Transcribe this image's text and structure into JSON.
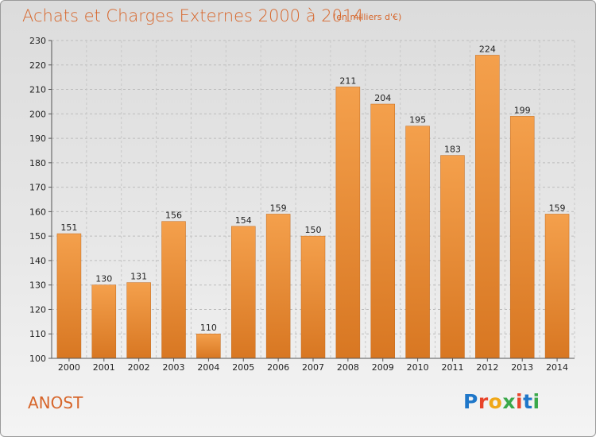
{
  "title": "Achats et Charges Externes 2000 à 2014",
  "subtitle": "(en milliers d'€)",
  "commune": "ANOST",
  "logo": {
    "letters": [
      "P",
      "r",
      "o",
      "x",
      "i",
      "t",
      "i"
    ],
    "colors": [
      "#1f77c9",
      "#e8442a",
      "#f0a818",
      "#3aa84a",
      "#e8442a",
      "#1f77c9",
      "#3aa84a"
    ]
  },
  "colors": {
    "bar_top": "#f4a04c",
    "bar_bottom": "#d87722",
    "accent": "#d7662b"
  },
  "chart_data": {
    "type": "bar",
    "title": "Achats et Charges Externes 2000 à 2014",
    "subtitle": "(en milliers d'€)",
    "categories": [
      "2000",
      "2001",
      "2002",
      "2003",
      "2004",
      "2005",
      "2006",
      "2007",
      "2008",
      "2009",
      "2010",
      "2011",
      "2012",
      "2013",
      "2014"
    ],
    "values": [
      151,
      130,
      131,
      156,
      110,
      154,
      159,
      150,
      211,
      204,
      195,
      183,
      224,
      199,
      159
    ],
    "ylim": [
      100,
      230
    ],
    "yticks": [
      100,
      110,
      120,
      130,
      140,
      150,
      160,
      170,
      180,
      190,
      200,
      210,
      220,
      230
    ],
    "grid": true,
    "xlabel": "",
    "ylabel": ""
  }
}
